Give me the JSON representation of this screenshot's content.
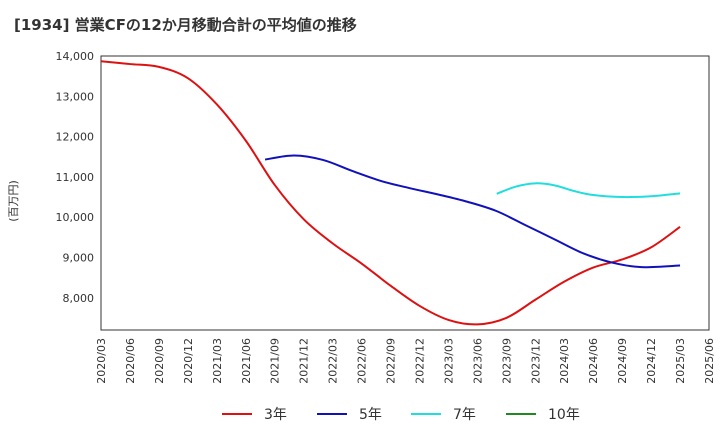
{
  "chart_data": {
    "type": "line",
    "title": "[1934]  営業CFの12か月移動合計の平均値の推移",
    "ylabel": "(百万円)",
    "xlabel": "",
    "ylim": [
      7200,
      14000
    ],
    "yticks": [
      8000,
      9000,
      10000,
      11000,
      12000,
      13000,
      14000
    ],
    "ytick_labels": [
      "8,000",
      "9,000",
      "10,000",
      "11,000",
      "12,000",
      "13,000",
      "14,000"
    ],
    "x_range": [
      "2020-03",
      "2025-06"
    ],
    "xtick_labels": [
      "2020/03",
      "2020/06",
      "2020/09",
      "2020/12",
      "2021/03",
      "2021/06",
      "2021/09",
      "2021/12",
      "2022/03",
      "2022/06",
      "2022/09",
      "2022/12",
      "2023/03",
      "2023/06",
      "2023/09",
      "2023/12",
      "2024/03",
      "2024/06",
      "2024/09",
      "2024/12",
      "2025/03",
      "2025/06"
    ],
    "grid": true,
    "legend_position": "bottom",
    "series": [
      {
        "name": "3年",
        "color": "#dd1111",
        "points": [
          [
            "2020-03",
            13870
          ],
          [
            "2020-06",
            13800
          ],
          [
            "2020-09",
            13730
          ],
          [
            "2020-12",
            13450
          ],
          [
            "2021-03",
            12800
          ],
          [
            "2021-06",
            11900
          ],
          [
            "2021-09",
            10800
          ],
          [
            "2021-12",
            9950
          ],
          [
            "2022-03",
            9350
          ],
          [
            "2022-06",
            8850
          ],
          [
            "2022-09",
            8300
          ],
          [
            "2022-12",
            7800
          ],
          [
            "2023-03",
            7450
          ],
          [
            "2023-06",
            7340
          ],
          [
            "2023-09",
            7500
          ],
          [
            "2023-12",
            7950
          ],
          [
            "2024-03",
            8400
          ],
          [
            "2024-06",
            8750
          ],
          [
            "2024-09",
            8950
          ],
          [
            "2024-12",
            9250
          ],
          [
            "2025-03",
            9760
          ]
        ]
      },
      {
        "name": "5年",
        "color": "#1111bb",
        "points": [
          [
            "2021-08",
            11430
          ],
          [
            "2021-11",
            11530
          ],
          [
            "2022-02",
            11420
          ],
          [
            "2022-05",
            11150
          ],
          [
            "2022-08",
            10900
          ],
          [
            "2022-11",
            10720
          ],
          [
            "2023-02",
            10560
          ],
          [
            "2023-05",
            10380
          ],
          [
            "2023-08",
            10150
          ],
          [
            "2023-11",
            9800
          ],
          [
            "2024-02",
            9450
          ],
          [
            "2024-05",
            9100
          ],
          [
            "2024-08",
            8870
          ],
          [
            "2024-11",
            8760
          ],
          [
            "2025-03",
            8800
          ]
        ]
      },
      {
        "name": "7年",
        "color": "#22dddd",
        "points": [
          [
            "2023-08",
            10580
          ],
          [
            "2023-10",
            10760
          ],
          [
            "2023-12",
            10840
          ],
          [
            "2024-02",
            10790
          ],
          [
            "2024-04",
            10650
          ],
          [
            "2024-06",
            10550
          ],
          [
            "2024-09",
            10500
          ],
          [
            "2024-12",
            10520
          ],
          [
            "2025-03",
            10590
          ]
        ]
      },
      {
        "name": "10年",
        "color": "#228822",
        "points": []
      }
    ]
  }
}
